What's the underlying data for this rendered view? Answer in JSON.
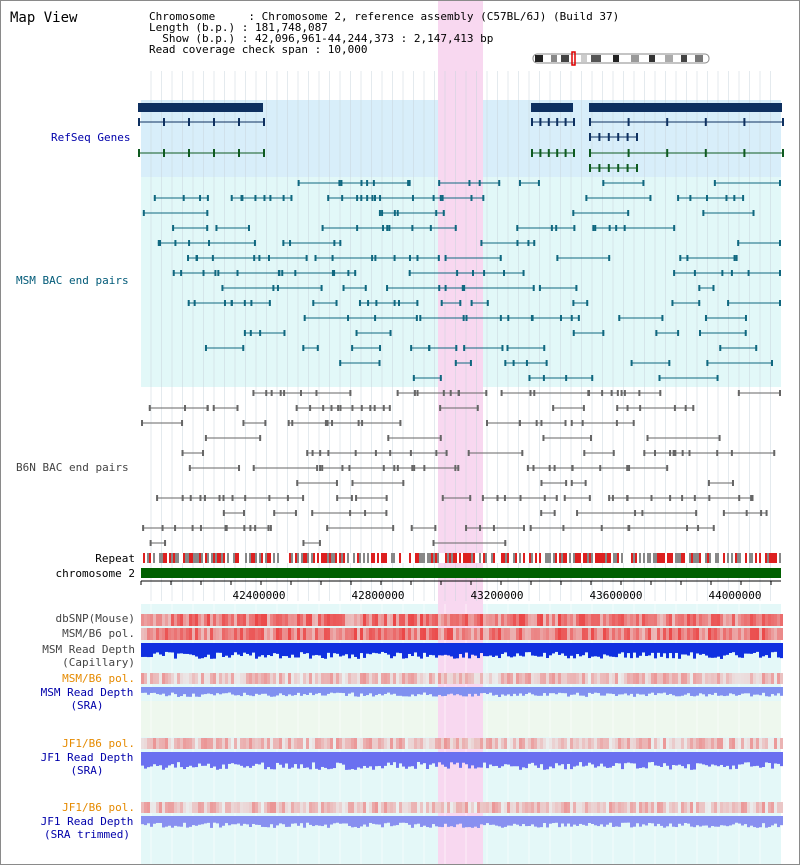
{
  "header": {
    "title": "Map View",
    "chromosome_line": "Chromosome     : Chromosome 2, reference assembly (C57BL/6J) (Build 37)",
    "length_line": "Length (b.p.) : 181,748,087",
    "show_line": "  Show (b.p.) : 42,096,961-44,244,373 : 2,147,413 bp",
    "coverage_line": "Read coverage check span : 10,000"
  },
  "tracks": {
    "refseq": "RefSeq Genes",
    "msm_bac": "MSM BAC end pairs",
    "b6n_bac": "B6N BAC end pairs",
    "repeat": "Repeat",
    "chromosome": "chromosome 2",
    "dbsnp": "dbSNP(Mouse)",
    "msm_b6_pol_1": "MSM/B6 pol.",
    "msm_depth_cap_1": "MSM Read Depth",
    "msm_depth_cap_2": "(Capillary)",
    "msm_b6_pol_2": "MSM/B6 pol.",
    "msm_depth_sra_1": "MSM Read Depth",
    "msm_depth_sra_2": "(SRA)",
    "jf1_b6_pol_1": "JF1/B6 pol.",
    "jf1_depth_sra_1": "JF1 Read Depth",
    "jf1_depth_sra_2": "(SRA)",
    "jf1_b6_pol_2": "JF1/B6 pol.",
    "jf1_depth_trim_1": "JF1 Read Depth",
    "jf1_depth_trim_2": "(SRA trimmed)"
  },
  "axis": {
    "ticks": [
      "42400000",
      "42800000",
      "43200000",
      "43600000",
      "44000000"
    ]
  },
  "colors": {
    "highlight": "#f8d8f0",
    "refseq_bg": "#d8eefa",
    "bac_bg": "#e2f8f8",
    "gene": "#0e3060",
    "chrom": "#006000"
  }
}
